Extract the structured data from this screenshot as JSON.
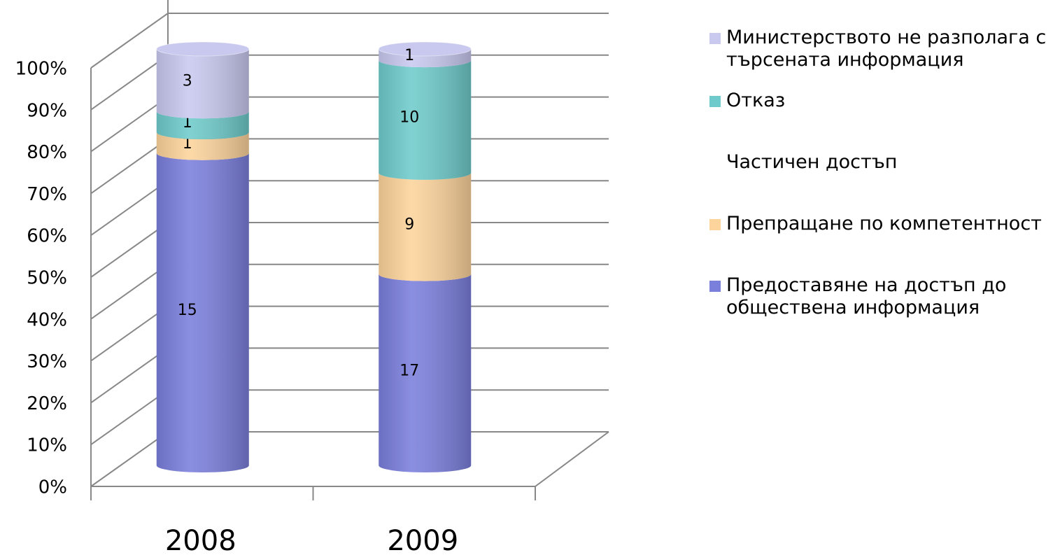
{
  "chart_data": {
    "type": "stacked_cylinder_100",
    "categories": [
      "2008",
      "2009"
    ],
    "series": [
      {
        "name": "Предоставяне на достъп до обществена информация",
        "color": "#7b7fdc",
        "values": [
          15,
          17
        ]
      },
      {
        "name": "Препращане по компетентност",
        "color": "#fdd49c",
        "values": [
          1,
          9
        ]
      },
      {
        "name": "Частичен достъп",
        "color": "#ffffff",
        "values": [
          0,
          0
        ]
      },
      {
        "name": "Отказ",
        "color": "#6fcbcb",
        "values": [
          1,
          10
        ]
      },
      {
        "name": "Министерството не разполага с търсената информация",
        "color": "#c9c9f0",
        "values": [
          3,
          1
        ]
      }
    ],
    "ylim": [
      0,
      100
    ],
    "yticks": [
      {
        "value": 0,
        "label": "0%"
      },
      {
        "value": 10,
        "label": "10%"
      },
      {
        "value": 20,
        "label": "20%"
      },
      {
        "value": 30,
        "label": "30%"
      },
      {
        "value": 40,
        "label": "40%"
      },
      {
        "value": 50,
        "label": "50%"
      },
      {
        "value": 60,
        "label": "60%"
      },
      {
        "value": 70,
        "label": "70%"
      },
      {
        "value": 80,
        "label": "80%"
      },
      {
        "value": 90,
        "label": "90%"
      },
      {
        "value": 100,
        "label": "100%"
      }
    ],
    "grid": true
  }
}
